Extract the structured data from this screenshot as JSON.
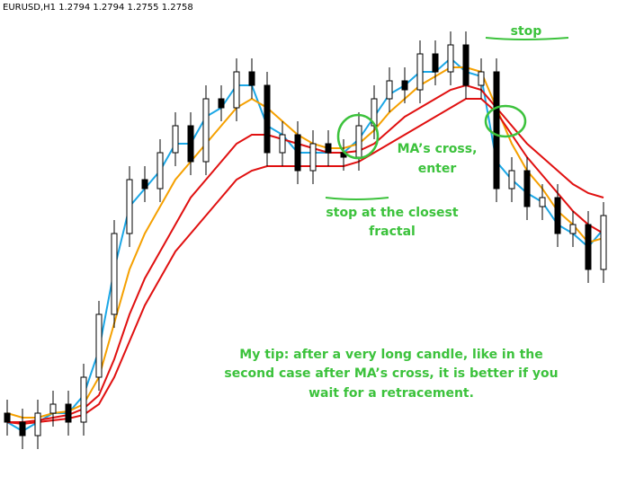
{
  "chart_data": {
    "type": "candlestick",
    "title": "EURUSD,H1  1.2794 1.2794 1.2755 1.2758",
    "categories": [
      null,
      null,
      null,
      null,
      null,
      null,
      null,
      null,
      null,
      null,
      null,
      null,
      null,
      null,
      null,
      null,
      null,
      null,
      null,
      null,
      null,
      null,
      null,
      null,
      null,
      null,
      null,
      null,
      null,
      null,
      null,
      null,
      null,
      null,
      null,
      null,
      null,
      null,
      null,
      null
    ],
    "open": [
      1.258,
      1.257,
      1.2555,
      1.258,
      1.259,
      1.257,
      1.262,
      1.269,
      1.278,
      1.284,
      1.283,
      1.287,
      1.29,
      1.286,
      1.293,
      1.292,
      1.296,
      1.2945,
      1.287,
      1.289,
      1.285,
      1.288,
      1.287,
      1.2865,
      1.29,
      1.293,
      1.295,
      1.294,
      1.298,
      1.296,
      1.299,
      1.2945,
      1.296,
      1.283,
      1.285,
      1.281,
      1.282,
      1.278,
      1.279,
      1.274
    ],
    "high": [
      1.2595,
      1.2585,
      1.2595,
      1.2605,
      1.2605,
      1.2635,
      1.2705,
      1.2795,
      1.2855,
      1.2855,
      1.2885,
      1.2915,
      1.2915,
      1.2945,
      1.2945,
      1.2975,
      1.2975,
      1.296,
      1.2905,
      1.2905,
      1.2895,
      1.2895,
      1.2885,
      1.2915,
      1.2945,
      1.2965,
      1.2965,
      1.2995,
      1.2995,
      1.3005,
      1.3005,
      1.2975,
      1.2975,
      1.2865,
      1.2865,
      1.2835,
      1.2835,
      1.2805,
      1.2805,
      1.2815
    ],
    "low": [
      1.2555,
      1.254,
      1.254,
      1.2565,
      1.2555,
      1.2555,
      1.2605,
      1.2675,
      1.2765,
      1.2815,
      1.2815,
      1.2855,
      1.2845,
      1.2845,
      1.2905,
      1.2905,
      1.293,
      1.2855,
      1.2855,
      1.2835,
      1.2835,
      1.2855,
      1.285,
      1.285,
      1.2885,
      1.2915,
      1.2925,
      1.2925,
      1.2945,
      1.2945,
      1.293,
      1.293,
      1.2815,
      1.2815,
      1.2795,
      1.2795,
      1.2765,
      1.2765,
      1.2725,
      1.2725
    ],
    "close": [
      1.257,
      1.2555,
      1.258,
      1.259,
      1.257,
      1.262,
      1.269,
      1.278,
      1.284,
      1.283,
      1.287,
      1.29,
      1.286,
      1.293,
      1.292,
      1.296,
      1.2945,
      1.287,
      1.289,
      1.285,
      1.288,
      1.287,
      1.2865,
      1.29,
      1.293,
      1.295,
      1.294,
      1.298,
      1.296,
      1.299,
      1.2945,
      1.296,
      1.283,
      1.285,
      1.281,
      1.282,
      1.278,
      1.279,
      1.274,
      1.28
    ],
    "lines": [
      {
        "color": "#1ba7e6",
        "values": [
          1.257,
          1.256,
          1.257,
          1.258,
          1.258,
          1.26,
          1.265,
          1.274,
          1.281,
          1.283,
          1.285,
          1.288,
          1.288,
          1.291,
          1.292,
          1.2945,
          1.2945,
          1.29,
          1.289,
          1.287,
          1.287,
          1.287,
          1.287,
          1.2885,
          1.291,
          1.2935,
          1.2945,
          1.296,
          1.296,
          1.2975,
          1.296,
          1.2955,
          1.286,
          1.284,
          1.2825,
          1.2815,
          1.279,
          1.278,
          1.2765,
          1.2785
        ]
      },
      {
        "color": "#f5a000",
        "values": [
          1.258,
          1.2575,
          1.2575,
          1.258,
          1.2582,
          1.259,
          1.262,
          1.268,
          1.274,
          1.278,
          1.281,
          1.284,
          1.286,
          1.288,
          1.29,
          1.292,
          1.293,
          1.292,
          1.2905,
          1.289,
          1.288,
          1.2875,
          1.2875,
          1.288,
          1.2895,
          1.2915,
          1.293,
          1.2945,
          1.2955,
          1.2965,
          1.2965,
          1.296,
          1.292,
          1.288,
          1.285,
          1.283,
          1.2805,
          1.279,
          1.277,
          1.2775
        ]
      },
      {
        "color": "#e01010",
        "values": [
          1.257,
          1.257,
          1.2572,
          1.2575,
          1.2578,
          1.2585,
          1.26,
          1.264,
          1.269,
          1.273,
          1.276,
          1.279,
          1.282,
          1.284,
          1.286,
          1.288,
          1.289,
          1.289,
          1.2885,
          1.288,
          1.2875,
          1.287,
          1.287,
          1.2872,
          1.288,
          1.2895,
          1.291,
          1.292,
          1.293,
          1.294,
          1.2945,
          1.294,
          1.292,
          1.29,
          1.288,
          1.2865,
          1.285,
          1.2835,
          1.2825,
          1.282
        ]
      },
      {
        "color": "#e01010",
        "values": [
          1.257,
          1.2568,
          1.257,
          1.2572,
          1.2574,
          1.2578,
          1.259,
          1.262,
          1.266,
          1.27,
          1.273,
          1.276,
          1.278,
          1.28,
          1.282,
          1.284,
          1.285,
          1.2855,
          1.2855,
          1.2855,
          1.2855,
          1.2855,
          1.2855,
          1.286,
          1.287,
          1.288,
          1.289,
          1.29,
          1.291,
          1.292,
          1.293,
          1.293,
          1.2915,
          1.289,
          1.2865,
          1.2845,
          1.2825,
          1.2805,
          1.279,
          1.278
        ]
      }
    ],
    "ylim": [
      1.25,
      1.304
    ],
    "annotations": {
      "stop": "stop",
      "cross": [
        "MA’s cross,",
        "enter"
      ],
      "fractal": [
        "stop at the closest",
        "fractal"
      ],
      "tip": [
        "My tip: after a very long candle, like in the",
        "second case after MA’s cross, it is better if you",
        "wait for a retracement."
      ]
    }
  }
}
